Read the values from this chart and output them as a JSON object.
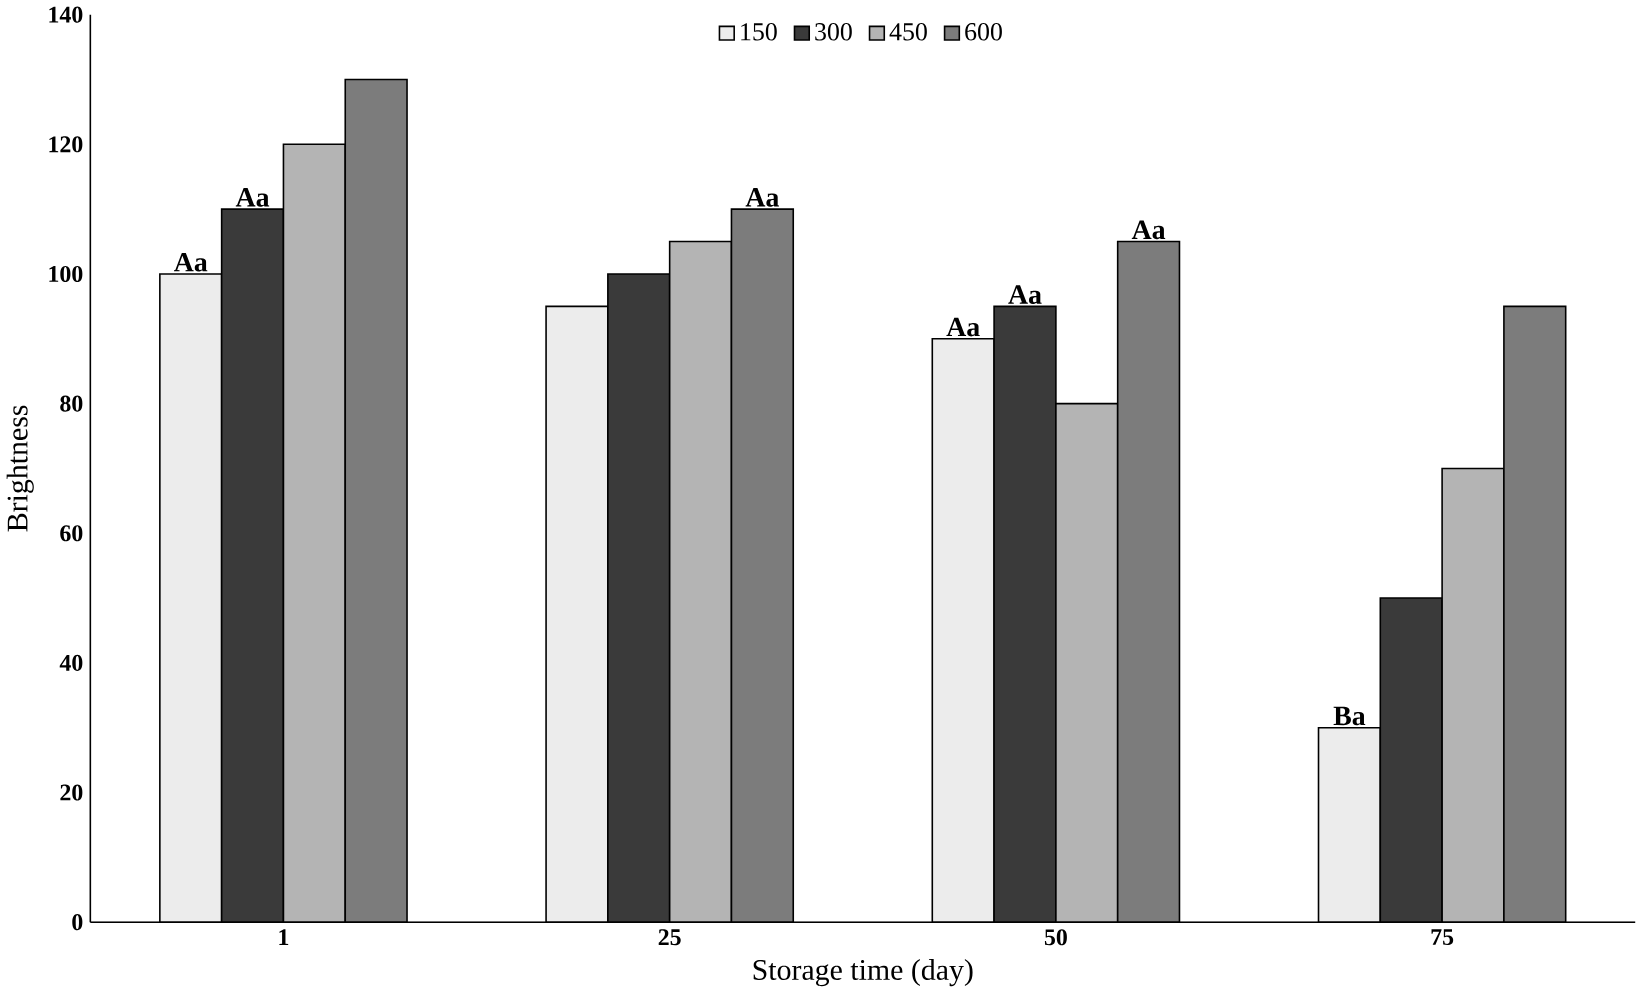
{
  "chart_data": {
    "type": "bar",
    "xlabel": "Storage time (day)",
    "ylabel": "Brightness",
    "categories": [
      "1",
      "25",
      "50",
      "75"
    ],
    "series": [
      {
        "name": "150",
        "color": "#ececec",
        "values": [
          100,
          95,
          90,
          30
        ],
        "value_labels": [
          "Aa",
          null,
          "Aa",
          "Ba"
        ]
      },
      {
        "name": "300",
        "color": "#3a3a3a",
        "values": [
          110,
          100,
          95,
          50
        ],
        "value_labels": [
          "Aa",
          null,
          "Aa",
          null
        ]
      },
      {
        "name": "450",
        "color": "#b4b4b4",
        "values": [
          120,
          105,
          80,
          70
        ]
      },
      {
        "name": "600",
        "color": "#7c7c7c",
        "values": [
          130,
          110,
          105,
          95
        ],
        "value_labels": [
          null,
          "Aa",
          "Aa",
          null
        ]
      }
    ],
    "ylim": [
      0,
      140
    ],
    "yticks": [
      0,
      20,
      40,
      60,
      80,
      100,
      120,
      140
    ],
    "legend": "top"
  }
}
